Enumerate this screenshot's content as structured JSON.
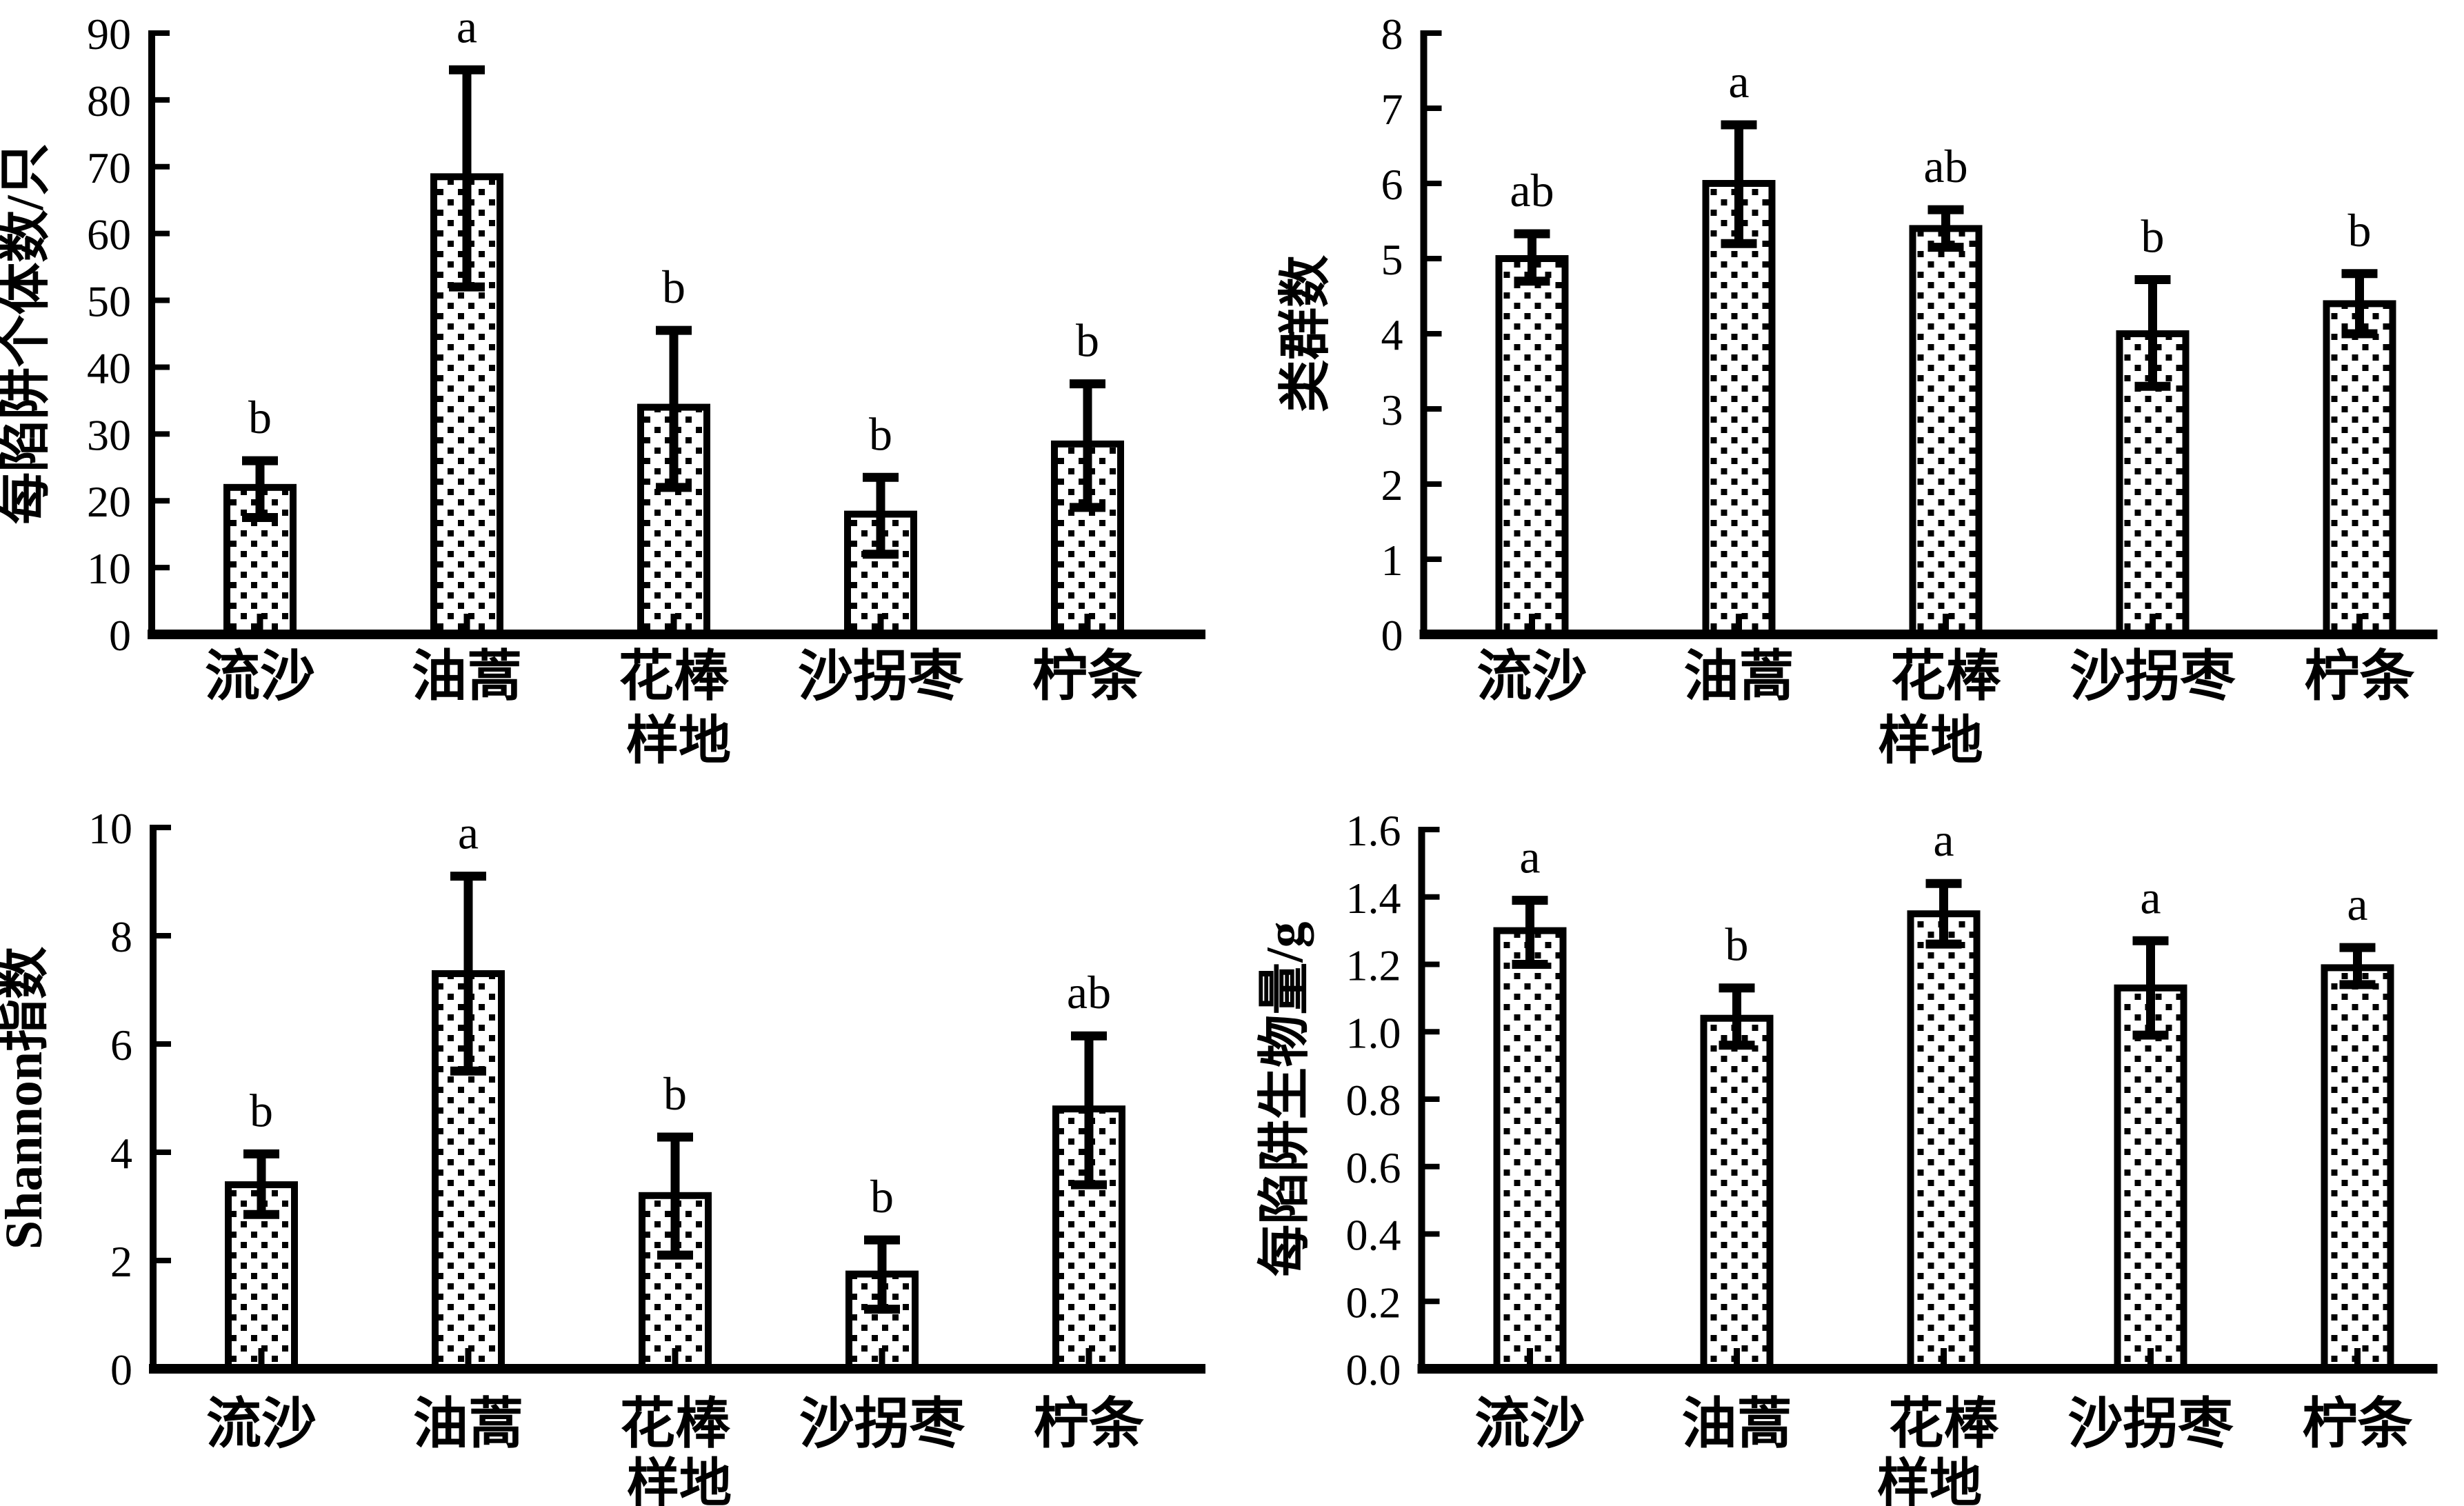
{
  "figure": {
    "background": "#ffffff",
    "ink_color": "#000000",
    "shared_categories": [
      "流沙",
      "油蒿",
      "花棒",
      "沙拐枣",
      "柠条"
    ],
    "shared_xlabel": "样地"
  },
  "chart_data": [
    {
      "type": "bar",
      "position": "top-left",
      "title": "",
      "categories": [
        "流沙",
        "油蒿",
        "花棒",
        "沙拐枣",
        "柠条"
      ],
      "xlabel": "样地",
      "ylabel": "每陷阱个体数/只",
      "ylim": [
        0,
        90
      ],
      "ytick_step": 10,
      "ytick_decimals": 0,
      "grid": false,
      "values": [
        22,
        68.5,
        34,
        18,
        28.5
      ],
      "error_low": [
        17.5,
        52,
        22,
        12,
        19
      ],
      "error_high": [
        26,
        84.5,
        45.5,
        23.5,
        37.5
      ],
      "sig_letters": [
        "b",
        "a",
        "b",
        "b",
        "b"
      ]
    },
    {
      "type": "bar",
      "position": "top-right",
      "title": "",
      "categories": [
        "流沙",
        "油蒿",
        "花棒",
        "沙拐枣",
        "柠条"
      ],
      "xlabel": "样地",
      "ylabel": "类群数",
      "ylim": [
        0,
        8
      ],
      "ytick_step": 1,
      "ytick_decimals": 0,
      "grid": false,
      "values": [
        5,
        6,
        5.4,
        4,
        4.4
      ],
      "error_low": [
        4.7,
        5.2,
        5.15,
        3.3,
        4.0
      ],
      "error_high": [
        5.33,
        6.78,
        5.65,
        4.72,
        4.8
      ],
      "sig_letters": [
        "ab",
        "a",
        "ab",
        "b",
        "b"
      ]
    },
    {
      "type": "bar",
      "position": "bottom-left",
      "title": "",
      "categories": [
        "流沙",
        "油蒿",
        "花棒",
        "沙拐枣",
        "柠条"
      ],
      "xlabel": "样地",
      "ylabel": "Shannon指数",
      "ylim": [
        0,
        10
      ],
      "ytick_step": 2,
      "ytick_decimals": 0,
      "grid": false,
      "values": [
        3.4,
        7.3,
        3.2,
        1.75,
        4.8
      ],
      "error_low": [
        2.85,
        5.5,
        2.1,
        1.1,
        3.4
      ],
      "error_high": [
        3.97,
        9.1,
        4.28,
        2.38,
        6.15
      ],
      "sig_letters": [
        "b",
        "a",
        "b",
        "b",
        "ab"
      ]
    },
    {
      "type": "bar",
      "position": "bottom-right",
      "title": "",
      "categories": [
        "流沙",
        "油蒿",
        "花棒",
        "沙拐枣",
        "柠条"
      ],
      "xlabel": "样地",
      "ylabel": "每陷阱生物量/g",
      "ylim": [
        0,
        1.6
      ],
      "ytick_step": 0.2,
      "ytick_decimals": 1,
      "grid": false,
      "values": [
        1.3,
        1.04,
        1.35,
        1.13,
        1.19
      ],
      "error_low": [
        1.2,
        0.96,
        1.26,
        0.99,
        1.14
      ],
      "error_high": [
        1.39,
        1.13,
        1.44,
        1.27,
        1.25
      ],
      "sig_letters": [
        "a",
        "b",
        "a",
        "a",
        "a"
      ]
    }
  ]
}
